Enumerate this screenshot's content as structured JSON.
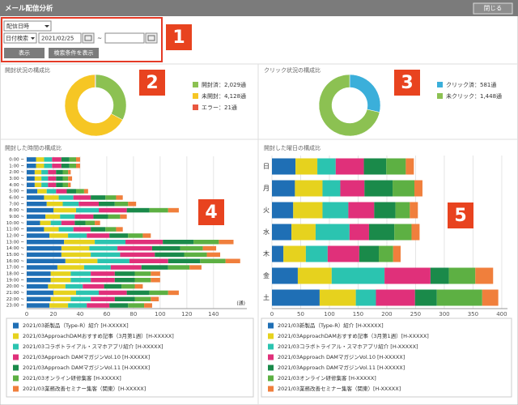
{
  "header": {
    "title": "メール配信分析",
    "close_button": "閉じる"
  },
  "controls": {
    "date_type": "配信日時",
    "search_mode": "日付検索",
    "date_from": "2021/02/25",
    "range_sep": "~",
    "show_button": "表示",
    "conditions_button": "検索条件を表示"
  },
  "callouts": [
    "1",
    "2",
    "3",
    "4",
    "5"
  ],
  "chart_data": [
    {
      "type": "pie",
      "title": "開封状況の構成比",
      "legend_labels": [
        "開封済：2,029通",
        "未開封：4,128通",
        "エラー：21通"
      ],
      "values": [
        2029,
        4128,
        21
      ],
      "colors": [
        "#8cc152",
        "#f6c624",
        "#e9573f"
      ]
    },
    {
      "type": "pie",
      "title": "クリック状況の構成比",
      "legend_labels": [
        "クリック済：581通",
        "未クリック：1,448通"
      ],
      "values": [
        581,
        1448
      ],
      "colors": [
        "#3bafda",
        "#8cc152"
      ]
    },
    {
      "type": "bar",
      "orientation": "horizontal",
      "stacked": true,
      "title": "開封した時間の構成比",
      "x_unit": "(通)",
      "categories": [
        "0:00 ~",
        "1:00 ~",
        "2:00 ~",
        "3:00 ~",
        "4:00 ~",
        "5:00 ~",
        "6:00 ~",
        "7:00 ~",
        "8:00 ~",
        "9:00 ~",
        "10:00 ~",
        "11:00 ~",
        "12:00 ~",
        "13:00 ~",
        "14:00 ~",
        "15:00 ~",
        "16:00 ~",
        "17:00 ~",
        "18:00 ~",
        "19:00 ~",
        "20:00 ~",
        "21:00 ~",
        "22:00 ~",
        "23:00 ~"
      ],
      "xlim": [
        0,
        165
      ],
      "xticks": [
        0,
        20,
        40,
        60,
        80,
        100,
        120,
        140
      ],
      "series": [
        {
          "name": "2021/03新製品（Type-R）紹介 [H-XXXXX]",
          "color": "#1f6fb5",
          "values": [
            7,
            7,
            6,
            6,
            6,
            8,
            13,
            15,
            20,
            14,
            10,
            13,
            17,
            28,
            26,
            26,
            29,
            23,
            18,
            18,
            16,
            20,
            18,
            17
          ]
        },
        {
          "name": "2021/03ApproachDAMおすすめ記事（3月第1週）[H-XXXXX]",
          "color": "#e6d21e",
          "values": [
            6,
            6,
            5,
            5,
            5,
            7,
            11,
            12,
            17,
            11,
            8,
            11,
            14,
            23,
            21,
            22,
            24,
            20,
            15,
            15,
            13,
            17,
            15,
            14
          ]
        },
        {
          "name": "2021/03コラボトライアル・スマホアプリ紹介 [H-XXXXX]",
          "color": "#2bc4b0",
          "values": [
            6,
            6,
            5,
            5,
            5,
            7,
            11,
            12,
            17,
            11,
            8,
            11,
            14,
            23,
            21,
            22,
            24,
            20,
            15,
            15,
            13,
            17,
            15,
            14
          ]
        },
        {
          "name": "2021/03Approach DAMマガジンVol.10 [H-XXXXX]",
          "color": "#e0307a",
          "values": [
            7,
            7,
            6,
            6,
            6,
            8,
            13,
            15,
            21,
            14,
            10,
            13,
            17,
            28,
            26,
            26,
            29,
            23,
            18,
            18,
            16,
            21,
            18,
            17
          ]
        },
        {
          "name": "2021/03Approach DAMマガジンVol.11 [H-XXXXX]",
          "color": "#1a8a4a",
          "values": [
            6,
            6,
            5,
            5,
            5,
            7,
            11,
            12,
            17,
            11,
            8,
            11,
            14,
            23,
            21,
            22,
            24,
            20,
            15,
            15,
            13,
            17,
            15,
            14
          ]
        },
        {
          "name": "2021/03オンライン研修集客 [H-XXXXX]",
          "color": "#5db043",
          "values": [
            5,
            5,
            4,
            4,
            4,
            6,
            8,
            10,
            14,
            9,
            7,
            8,
            11,
            19,
            17,
            17,
            19,
            16,
            12,
            12,
            10,
            14,
            12,
            12
          ]
        },
        {
          "name": "2021/03業務改善セミナー集客（関東）[H-XXXXX]",
          "color": "#f07f3c",
          "values": [
            3,
            3,
            2,
            3,
            2,
            3,
            5,
            6,
            8,
            5,
            4,
            5,
            6,
            11,
            10,
            10,
            11,
            9,
            7,
            7,
            6,
            8,
            6,
            6
          ]
        }
      ]
    },
    {
      "type": "bar",
      "orientation": "horizontal",
      "stacked": true,
      "title": "開封した曜日の構成比",
      "categories": [
        "日",
        "月",
        "火",
        "水",
        "木",
        "金",
        "土"
      ],
      "xlim": [
        0,
        410
      ],
      "xticks": [
        0,
        50,
        100,
        150,
        200,
        250,
        300,
        350,
        400
      ],
      "series": [
        {
          "name": "2021/03新製品（Type-R）紹介 [H-XXXXX]",
          "color": "#1f6fb5",
          "values": [
            41,
            40,
            37,
            34,
            20,
            45,
            83
          ]
        },
        {
          "name": "2021/03ApproachDAMおすすめ記事（3月第1週）[H-XXXXX]",
          "color": "#e6d21e",
          "values": [
            38,
            48,
            51,
            42,
            39,
            59,
            63
          ]
        },
        {
          "name": "2021/03コラボトライアル・スマホアプリ紹介 [H-XXXXX]",
          "color": "#2bc4b0",
          "values": [
            32,
            31,
            45,
            59,
            38,
            92,
            35
          ]
        },
        {
          "name": "2021/03Approach DAMマガジンVol.10 [H-XXXXX]",
          "color": "#e0307a",
          "values": [
            49,
            42,
            45,
            34,
            55,
            80,
            68
          ]
        },
        {
          "name": "2021/03Approach DAMマガジンVol.11 [H-XXXXX]",
          "color": "#1a8a4a",
          "values": [
            39,
            49,
            37,
            44,
            34,
            32,
            38
          ]
        },
        {
          "name": "2021/03オンライン研修集客 [H-XXXXX]",
          "color": "#5db043",
          "values": [
            34,
            38,
            25,
            30,
            25,
            46,
            79
          ]
        },
        {
          "name": "2021/03業務改善セミナー集客（関東）[H-XXXXX]",
          "color": "#f07f3c",
          "values": [
            14,
            14,
            14,
            14,
            13,
            31,
            28
          ]
        }
      ]
    }
  ]
}
